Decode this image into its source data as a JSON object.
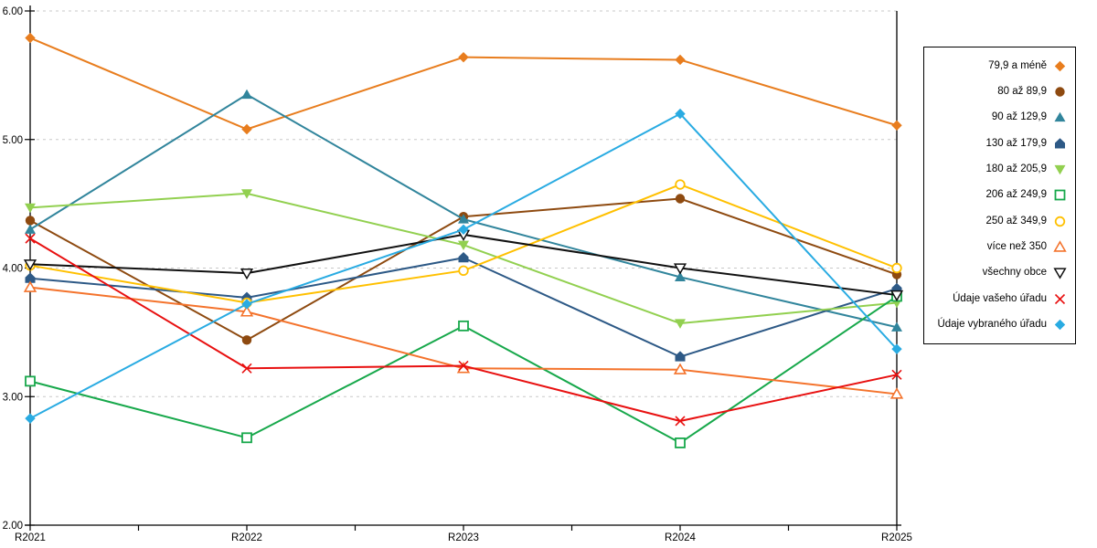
{
  "chart_data": {
    "type": "line",
    "title": "",
    "xlabel": "",
    "ylabel": "",
    "categories": [
      "R2021",
      "R2022",
      "R2023",
      "R2024",
      "R2025"
    ],
    "y_ticks": [
      6.0,
      5.0,
      4.0,
      3.0,
      2.0
    ],
    "y_tick_labels": [
      "6.00",
      "5.00",
      "4.00",
      "3.00",
      "2.00"
    ],
    "ylim": [
      2.0,
      6.0
    ],
    "grid": "horizontal-dashed",
    "grid_color": "#c8c8c8",
    "axis_color": "#000000",
    "legend_position": "right",
    "series": [
      {
        "name": "79,9 a méně",
        "color": "#E87D1E",
        "marker": "diamond",
        "values": [
          5.79,
          5.08,
          5.64,
          5.62,
          5.11
        ]
      },
      {
        "name": "80 až 89,9",
        "color": "#8E4A10",
        "marker": "circle",
        "values": [
          4.37,
          3.44,
          4.4,
          4.54,
          3.95
        ]
      },
      {
        "name": "90 až 129,9",
        "color": "#31859C",
        "marker": "triangle-up",
        "values": [
          4.3,
          5.35,
          4.38,
          3.93,
          3.54
        ]
      },
      {
        "name": "130 až 179,9",
        "color": "#2D5986",
        "marker": "pentagon",
        "values": [
          3.92,
          3.77,
          4.08,
          3.31,
          3.84
        ]
      },
      {
        "name": "180 až 205,9",
        "color": "#92D050",
        "marker": "triangle-down",
        "values": [
          4.47,
          4.58,
          4.18,
          3.57,
          3.73
        ]
      },
      {
        "name": "206 až 249,9",
        "color": "#17A84B",
        "marker": "square-hollow",
        "values": [
          3.12,
          2.68,
          3.55,
          2.64,
          3.78
        ]
      },
      {
        "name": "250 až 349,9",
        "color": "#FFC000",
        "marker": "circle-hollow",
        "values": [
          4.02,
          3.73,
          3.98,
          4.65,
          4.0
        ]
      },
      {
        "name": "více než 350",
        "color": "#F4732C",
        "marker": "triangle-up-hollow",
        "values": [
          3.85,
          3.66,
          3.22,
          3.21,
          3.02
        ]
      },
      {
        "name": "všechny obce",
        "color": "#111111",
        "marker": "triangle-down-hollow",
        "values": [
          4.03,
          3.96,
          4.26,
          4.0,
          3.79
        ]
      },
      {
        "name": "Údaje vašeho úřadu",
        "color": "#E81010",
        "marker": "x",
        "values": [
          4.23,
          3.22,
          3.24,
          2.81,
          3.17
        ]
      },
      {
        "name": "Údaje vybraného úřadu",
        "color": "#29ABE2",
        "marker": "diamond",
        "values": [
          2.83,
          3.72,
          4.3,
          5.2,
          3.37
        ]
      }
    ]
  }
}
